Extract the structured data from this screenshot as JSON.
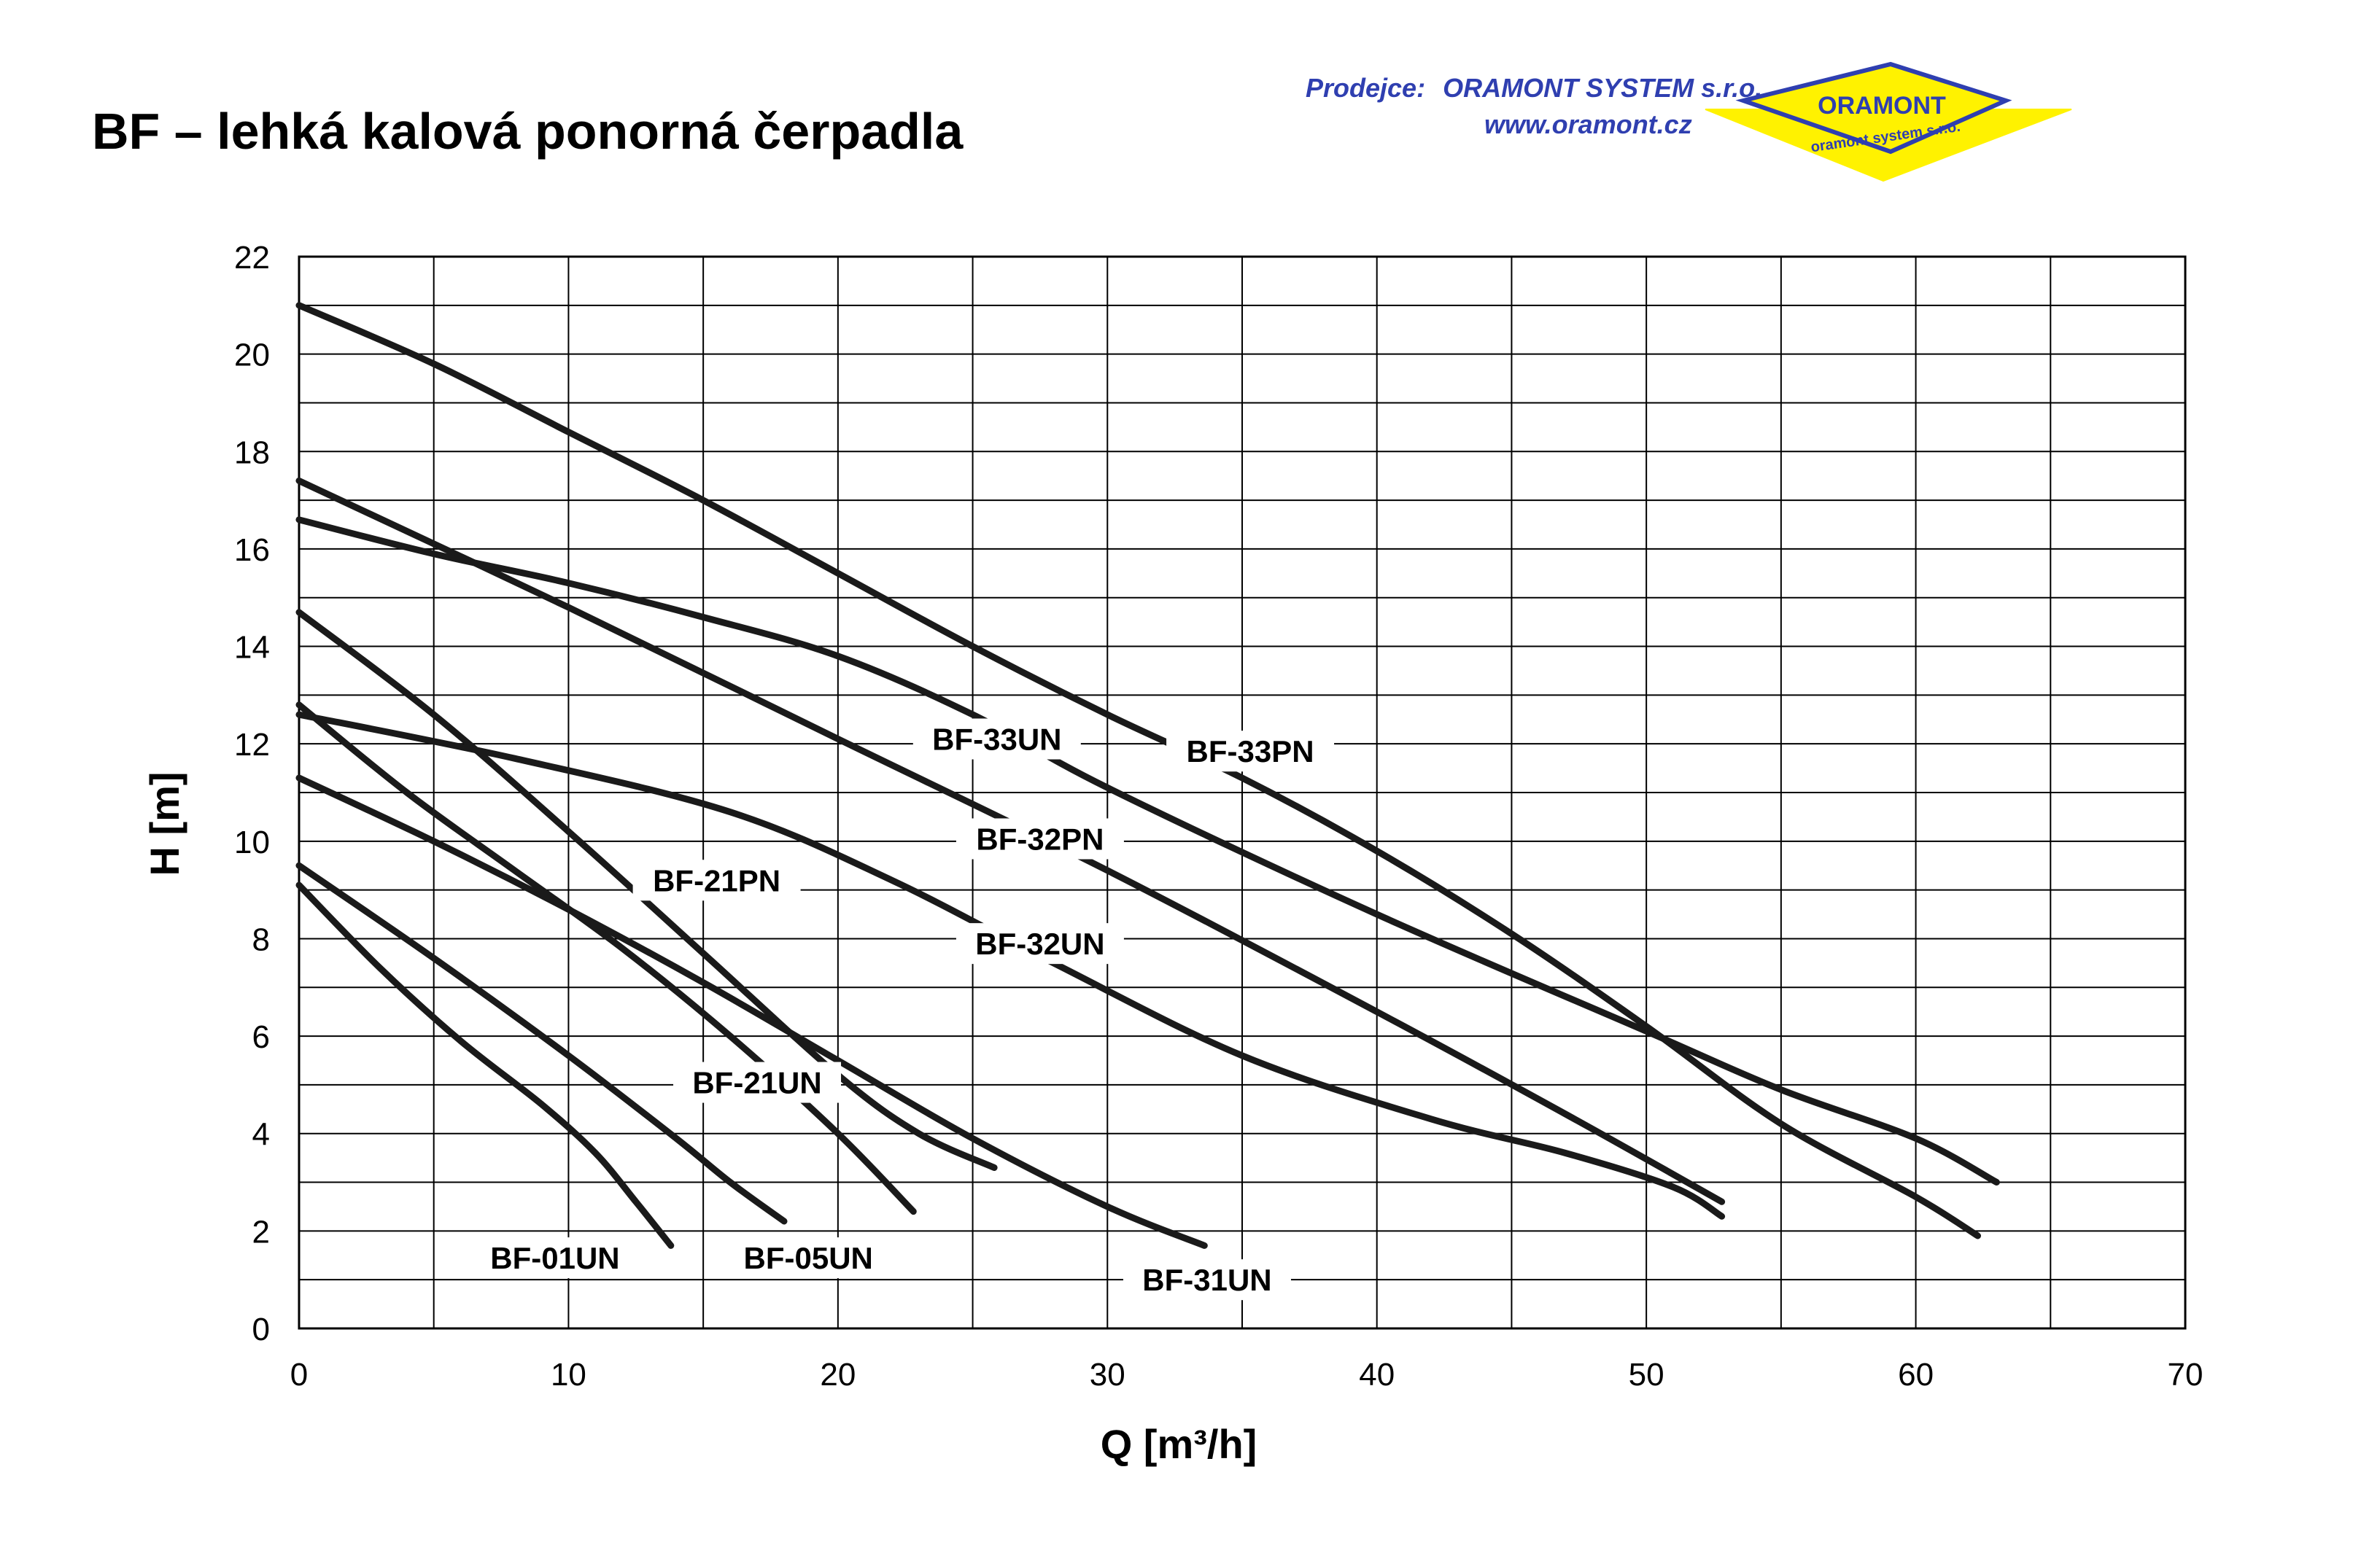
{
  "title": "BF – lehká kalová ponorná čerpadla",
  "seller": {
    "label": "Prodejce:",
    "company": "ORAMONT SYSTEM s.r.o.",
    "url": "www.oramont.cz",
    "logo_text": "ORAMONT",
    "logo_subtext": "oramont system s.r.o.",
    "text_color": "#2f3fb0",
    "logo_fill": "#fff200",
    "logo_border": "#2f3fb0"
  },
  "chart_data": {
    "type": "line",
    "xlabel": "Q [m³/h]",
    "ylabel": "H [m]",
    "xlim": [
      0,
      70
    ],
    "ylim": [
      0,
      22
    ],
    "xticks": [
      0,
      10,
      20,
      30,
      40,
      50,
      60,
      70
    ],
    "yticks": [
      0,
      2,
      4,
      6,
      8,
      10,
      12,
      14,
      16,
      18,
      20,
      22
    ],
    "grid": true,
    "line_color": "#1a1a1a",
    "series": [
      {
        "name": "BF-01UN",
        "points": [
          [
            0,
            9.1
          ],
          [
            3,
            7.4
          ],
          [
            6,
            5.9
          ],
          [
            9,
            4.6
          ],
          [
            11,
            3.6
          ],
          [
            12.5,
            2.6
          ],
          [
            13.8,
            1.7
          ]
        ]
      },
      {
        "name": "BF-05UN",
        "points": [
          [
            0,
            9.5
          ],
          [
            5,
            7.6
          ],
          [
            10,
            5.6
          ],
          [
            14,
            3.9
          ],
          [
            16,
            3.0
          ],
          [
            18,
            2.2
          ]
        ]
      },
      {
        "name": "BF-21UN",
        "points": [
          [
            0,
            12.8
          ],
          [
            4,
            11.0
          ],
          [
            8,
            9.4
          ],
          [
            12,
            7.8
          ],
          [
            16,
            6.0
          ],
          [
            20,
            4.0
          ],
          [
            22.8,
            2.4
          ]
        ]
      },
      {
        "name": "BF-21PN",
        "points": [
          [
            0,
            14.7
          ],
          [
            5,
            12.6
          ],
          [
            10,
            10.2
          ],
          [
            15,
            7.7
          ],
          [
            20,
            5.2
          ],
          [
            23,
            4.0
          ],
          [
            25.8,
            3.3
          ]
        ]
      },
      {
        "name": "BF-31UN",
        "points": [
          [
            0,
            11.3
          ],
          [
            5,
            10.0
          ],
          [
            10,
            8.6
          ],
          [
            15,
            7.1
          ],
          [
            20,
            5.5
          ],
          [
            25,
            3.9
          ],
          [
            30,
            2.5
          ],
          [
            33.6,
            1.7
          ]
        ]
      },
      {
        "name": "BF-32UN",
        "points": [
          [
            0,
            12.6
          ],
          [
            8,
            11.7
          ],
          [
            16,
            10.6
          ],
          [
            22,
            9.2
          ],
          [
            28,
            7.5
          ],
          [
            35,
            5.6
          ],
          [
            42,
            4.3
          ],
          [
            47,
            3.6
          ],
          [
            51,
            2.9
          ],
          [
            52.8,
            2.3
          ]
        ]
      },
      {
        "name": "BF-32PN",
        "points": [
          [
            0,
            17.4
          ],
          [
            10,
            14.8
          ],
          [
            20,
            12.1
          ],
          [
            30,
            9.4
          ],
          [
            40,
            6.5
          ],
          [
            47,
            4.4
          ],
          [
            52.8,
            2.6
          ]
        ]
      },
      {
        "name": "BF-33UN",
        "points": [
          [
            0,
            16.6
          ],
          [
            5,
            15.9
          ],
          [
            10,
            15.3
          ],
          [
            15,
            14.6
          ],
          [
            20,
            13.8
          ],
          [
            25,
            12.6
          ],
          [
            30,
            11.1
          ],
          [
            40,
            8.5
          ],
          [
            50,
            6.1
          ],
          [
            55,
            4.9
          ],
          [
            60,
            3.9
          ],
          [
            63,
            3.0
          ]
        ]
      },
      {
        "name": "BF-33PN",
        "points": [
          [
            0,
            21.0
          ],
          [
            5,
            19.8
          ],
          [
            10,
            18.4
          ],
          [
            15,
            17.0
          ],
          [
            20,
            15.5
          ],
          [
            25,
            14.0
          ],
          [
            30,
            12.6
          ],
          [
            35,
            11.3
          ],
          [
            40,
            9.8
          ],
          [
            45,
            8.1
          ],
          [
            50,
            6.2
          ],
          [
            55,
            4.2
          ],
          [
            60,
            2.7
          ],
          [
            62.3,
            1.9
          ]
        ]
      }
    ],
    "annotations": [
      {
        "text": "BF-01UN",
        "x": 9.5,
        "y": 1.45
      },
      {
        "text": "BF-05UN",
        "x": 18.9,
        "y": 1.45
      },
      {
        "text": "BF-21UN",
        "x": 17.0,
        "y": 5.05
      },
      {
        "text": "BF-21PN",
        "x": 15.5,
        "y": 9.2
      },
      {
        "text": "BF-31UN",
        "x": 33.7,
        "y": 1.0
      },
      {
        "text": "BF-32UN",
        "x": 27.5,
        "y": 7.9
      },
      {
        "text": "BF-32PN",
        "x": 27.5,
        "y": 10.05
      },
      {
        "text": "BF-33UN",
        "x": 25.9,
        "y": 12.1
      },
      {
        "text": "BF-33PN",
        "x": 35.3,
        "y": 11.85
      }
    ]
  }
}
